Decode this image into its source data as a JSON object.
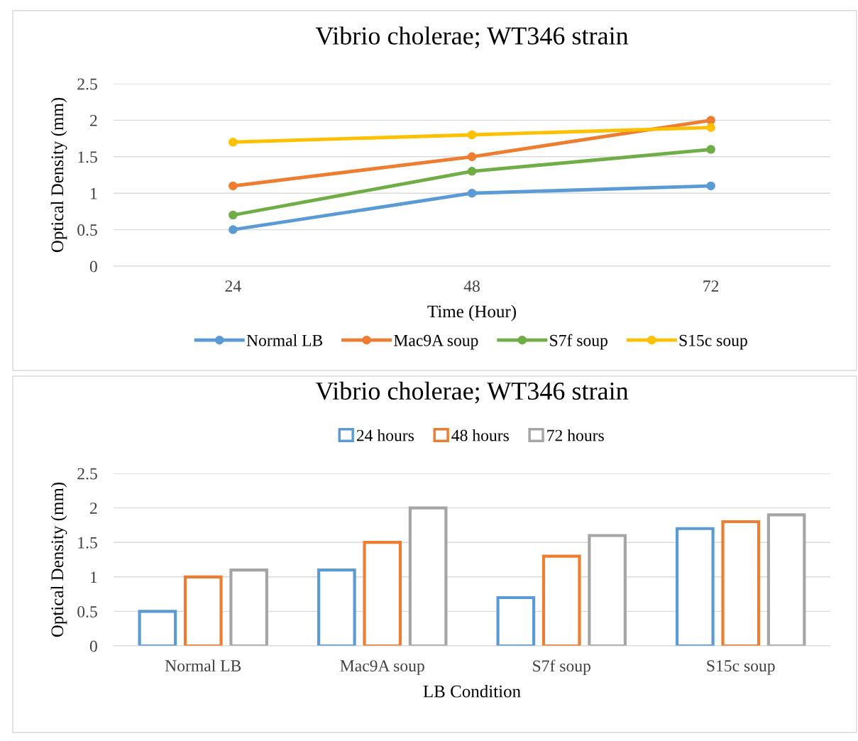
{
  "chart_data": [
    {
      "type": "line",
      "title": "Vibrio cholerae; WT346 strain",
      "xlabel": "Time (Hour)",
      "ylabel": "Optical Density (mm)",
      "categories": [
        "24",
        "48",
        "72"
      ],
      "series": [
        {
          "name": "Normal LB",
          "color": "#5b9bd5",
          "values": [
            0.5,
            1.0,
            1.1
          ]
        },
        {
          "name": "Mac9A soup",
          "color": "#ed7d31",
          "values": [
            1.1,
            1.5,
            2.0
          ]
        },
        {
          "name": "S7f soup",
          "color": "#70ad47",
          "values": [
            0.7,
            1.3,
            1.6
          ]
        },
        {
          "name": "S15c soup",
          "color": "#ffc000",
          "values": [
            1.7,
            1.8,
            1.9
          ]
        }
      ],
      "ylim": [
        0,
        2.5
      ],
      "yticks": [
        0,
        0.5,
        1,
        1.5,
        2,
        2.5
      ],
      "grid": "y",
      "legend": "bottom",
      "marker": "circle",
      "line_style": "solid"
    },
    {
      "type": "bar",
      "title": "Vibrio cholerae; WT346 strain",
      "xlabel": "LB Condition",
      "ylabel": "Optical Density (mm)",
      "categories": [
        "Normal LB",
        "Mac9A soup",
        "S7f soup",
        "S15c soup"
      ],
      "series": [
        {
          "name": "24 hours",
          "color": "#5b9bd5",
          "values": [
            0.5,
            1.1,
            0.7,
            1.7
          ]
        },
        {
          "name": "48 hours",
          "color": "#ed7d31",
          "values": [
            1.0,
            1.5,
            1.3,
            1.8
          ]
        },
        {
          "name": "72 hours",
          "color": "#a5a5a5",
          "values": [
            1.1,
            2.0,
            1.6,
            1.9
          ]
        }
      ],
      "ylim": [
        0,
        2.5
      ],
      "yticks": [
        0,
        0.5,
        1,
        1.5,
        2,
        2.5
      ],
      "grid": "y",
      "legend": "top"
    }
  ]
}
